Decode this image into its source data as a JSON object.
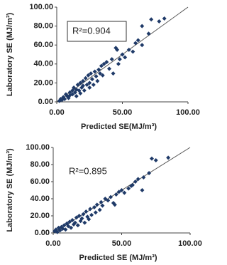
{
  "chart_data": [
    {
      "type": "scatter",
      "annotation": "R²=0.904",
      "annotation_box": true,
      "x_label": "Predicted SE(MJ/m³)",
      "y_label": "Laboratory SE (MJ/m³)",
      "color": "#1f3a68",
      "identity_line": true,
      "xlim": [
        0,
        100
      ],
      "ylim": [
        0,
        100
      ],
      "xticks": [
        {
          "value": 0,
          "label": "0.00"
        },
        {
          "value": 50,
          "label": "50.00"
        },
        {
          "value": 100,
          "label": "100.00"
        }
      ],
      "yticks": [
        {
          "value": 0,
          "label": "0.00"
        },
        {
          "value": 20,
          "label": "20.00"
        },
        {
          "value": 40,
          "label": "40.00"
        },
        {
          "value": 60,
          "label": "60.00"
        },
        {
          "value": 80,
          "label": "80.00"
        },
        {
          "value": 100,
          "label": "100.00"
        }
      ],
      "x": [
        2,
        3,
        4,
        5,
        6,
        7,
        8,
        9,
        10,
        10,
        12,
        12,
        13,
        14,
        15,
        15,
        16,
        17,
        18,
        18,
        19,
        20,
        20,
        21,
        22,
        23,
        24,
        25,
        25,
        26,
        27,
        28,
        29,
        30,
        31,
        32,
        33,
        34,
        35,
        36,
        38,
        40,
        42,
        43,
        45,
        46,
        47,
        48,
        50,
        52,
        55,
        58,
        60,
        62,
        65,
        65,
        70,
        72,
        78,
        82
      ],
      "values": [
        1,
        3,
        2,
        5,
        3,
        8,
        6,
        4,
        10,
        7,
        12,
        8,
        15,
        10,
        6,
        13,
        18,
        12,
        9,
        20,
        15,
        22,
        17,
        12,
        25,
        18,
        28,
        20,
        15,
        30,
        24,
        18,
        32,
        27,
        22,
        34,
        30,
        38,
        28,
        40,
        42,
        35,
        45,
        30,
        57,
        55,
        40,
        45,
        50,
        47,
        55,
        53,
        62,
        65,
        60,
        80,
        72,
        87,
        85,
        88
      ]
    },
    {
      "type": "scatter",
      "annotation": "R²=0.895",
      "annotation_box": false,
      "x_label": "Predicted SE (MJ/m³)",
      "y_label": "Laboratory SE (MJ/m³)",
      "color": "#1f3a68",
      "identity_line": true,
      "xlim": [
        0,
        100
      ],
      "ylim": [
        0,
        100
      ],
      "xticks": [
        {
          "value": 0,
          "label": "0.00"
        },
        {
          "value": 50,
          "label": "50.00"
        },
        {
          "value": 100,
          "label": "100.00"
        }
      ],
      "yticks": [
        {
          "value": 0,
          "label": "0.00"
        },
        {
          "value": 20,
          "label": "20.00"
        },
        {
          "value": 40,
          "label": "40.00"
        },
        {
          "value": 60,
          "label": "60.00"
        },
        {
          "value": 80,
          "label": "80.00"
        },
        {
          "value": 100,
          "label": "100.00"
        }
      ],
      "x": [
        1,
        2,
        3,
        4,
        5,
        6,
        7,
        8,
        9,
        10,
        11,
        12,
        13,
        14,
        15,
        16,
        17,
        18,
        19,
        20,
        21,
        22,
        23,
        24,
        25,
        26,
        27,
        28,
        30,
        31,
        32,
        34,
        35,
        36,
        38,
        40,
        42,
        44,
        45,
        46,
        48,
        50,
        52,
        55,
        57,
        58,
        60,
        62,
        65,
        66,
        70,
        72,
        75,
        84
      ],
      "values": [
        2,
        4,
        1,
        6,
        3,
        7,
        5,
        9,
        4,
        11,
        8,
        13,
        6,
        15,
        10,
        12,
        18,
        9,
        20,
        14,
        17,
        22,
        12,
        25,
        19,
        16,
        28,
        21,
        30,
        24,
        33,
        27,
        36,
        32,
        40,
        38,
        42,
        35,
        33,
        45,
        48,
        50,
        47,
        52,
        55,
        56,
        60,
        63,
        50,
        65,
        70,
        87,
        85,
        88
      ]
    }
  ]
}
